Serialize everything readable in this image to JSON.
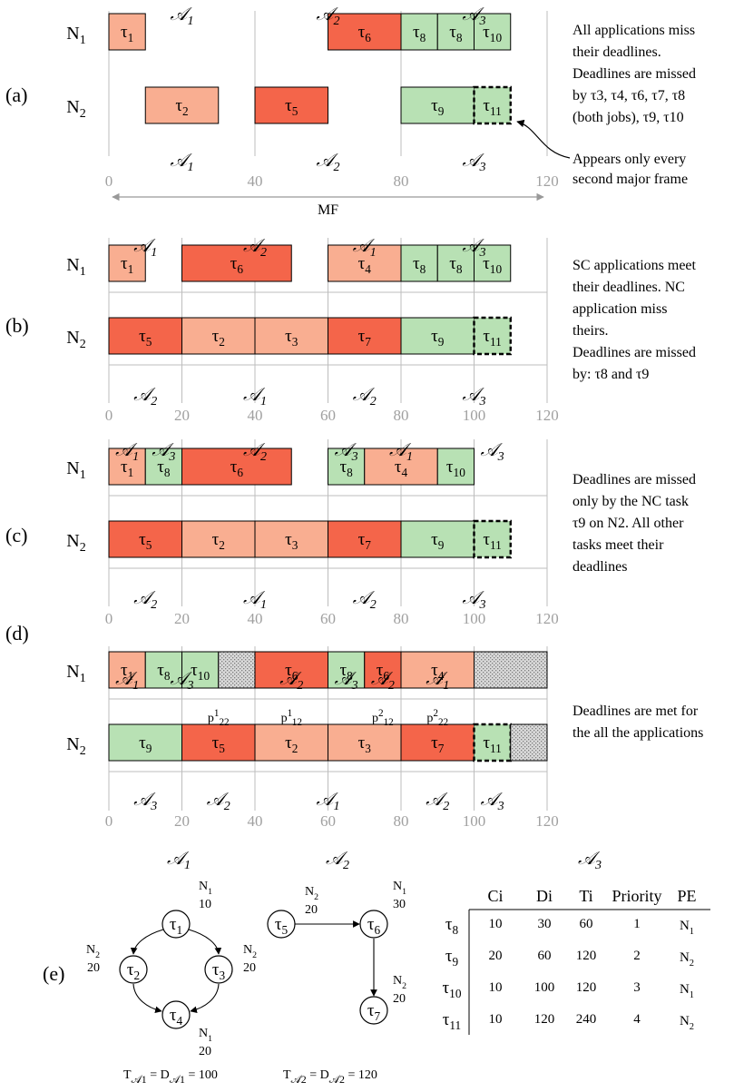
{
  "colors": {
    "hard": "#f4654a",
    "light": "#f9ae91",
    "green": "#b8e1b4",
    "idle": "#c8c8c8",
    "axis": "#a0a0a0"
  },
  "nodes": [
    "N1",
    "N2"
  ],
  "rows": [
    {
      "id": "a",
      "panel": "(a)",
      "axis_ticks": [
        "0",
        "40",
        "80",
        "120"
      ],
      "axis_color": "grey",
      "mf_label": "MF",
      "n1_tasks": [
        {
          "label": "τ1",
          "color": "light",
          "start": 0,
          "end": 10
        },
        {
          "label": "τ6",
          "color": "hard",
          "start": 60,
          "end": 80
        },
        {
          "label": "τ8",
          "color": "green",
          "start": 80,
          "end": 90
        },
        {
          "label": "τ8",
          "color": "green",
          "start": 90,
          "end": 100
        },
        {
          "label": "τ10",
          "color": "green",
          "start": 100,
          "end": 110
        }
      ],
      "n2_tasks": [
        {
          "label": "τ2",
          "color": "light",
          "start": 10,
          "end": 30
        },
        {
          "label": "τ5",
          "color": "hard",
          "start": 40,
          "end": 60
        },
        {
          "label": "τ9",
          "color": "green",
          "start": 80,
          "end": 100
        },
        {
          "label": "τ11",
          "color": "green",
          "start": 100,
          "end": 110,
          "dashed": true
        }
      ],
      "n1_apps": [
        {
          "label": "𝒜1",
          "at": 20
        },
        {
          "label": "𝒜2",
          "at": 60
        },
        {
          "label": "𝒜3",
          "at": 100
        }
      ],
      "n2_apps": [
        {
          "label": "𝒜1",
          "at": 20
        },
        {
          "label": "𝒜2",
          "at": 60
        },
        {
          "label": "𝒜3",
          "at": 100
        }
      ],
      "side_text": [
        "All applications miss",
        "their deadlines.",
        "Deadlines are missed",
        "by τ3, τ4, τ6, τ7, τ8",
        "(both jobs), τ9, τ10"
      ],
      "callout": [
        "Appears only every",
        "second major frame"
      ]
    },
    {
      "id": "b",
      "panel": "(b)",
      "axis_ticks": [
        "0",
        "20",
        "40",
        "60",
        "80",
        "100",
        "120"
      ],
      "n1_tasks": [
        {
          "label": "τ1",
          "color": "light",
          "start": 0,
          "end": 10
        },
        {
          "label": "τ6",
          "color": "hard",
          "start": 20,
          "end": 50
        },
        {
          "label": "τ4",
          "color": "light",
          "start": 60,
          "end": 80
        },
        {
          "label": "τ8",
          "color": "green",
          "start": 80,
          "end": 90
        },
        {
          "label": "τ8",
          "color": "green",
          "start": 90,
          "end": 100
        },
        {
          "label": "τ10",
          "color": "green",
          "start": 100,
          "end": 110
        }
      ],
      "n2_tasks": [
        {
          "label": "τ5",
          "color": "hard",
          "start": 0,
          "end": 20
        },
        {
          "label": "τ2",
          "color": "light",
          "start": 20,
          "end": 40
        },
        {
          "label": "τ3",
          "color": "light",
          "start": 40,
          "end": 60
        },
        {
          "label": "τ7",
          "color": "hard",
          "start": 60,
          "end": 80
        },
        {
          "label": "τ9",
          "color": "green",
          "start": 80,
          "end": 100
        },
        {
          "label": "τ11",
          "color": "green",
          "start": 100,
          "end": 110,
          "dashed": true
        }
      ],
      "n1_apps": [
        {
          "label": "𝒜1",
          "at": 10
        },
        {
          "label": "𝒜2",
          "at": 40
        },
        {
          "label": "𝒜1",
          "at": 70
        },
        {
          "label": "𝒜3",
          "at": 100
        }
      ],
      "n2_apps": [
        {
          "label": "𝒜2",
          "at": 10
        },
        {
          "label": "𝒜1",
          "at": 40
        },
        {
          "label": "𝒜2",
          "at": 70
        },
        {
          "label": "𝒜3",
          "at": 100
        }
      ],
      "side_text": [
        "SC applications meet",
        "their deadlines. NC",
        "application miss",
        "theirs.",
        "Deadlines are missed",
        "by: τ8 and τ9"
      ]
    },
    {
      "id": "c",
      "panel": "(c)",
      "axis_ticks": [
        "0",
        "20",
        "40",
        "60",
        "80",
        "100",
        "120"
      ],
      "n1_tasks": [
        {
          "label": "τ1",
          "color": "light",
          "start": 0,
          "end": 10
        },
        {
          "label": "τ8",
          "color": "green",
          "start": 10,
          "end": 20
        },
        {
          "label": "τ6",
          "color": "hard",
          "start": 20,
          "end": 50
        },
        {
          "label": "τ8",
          "color": "green",
          "start": 60,
          "end": 70
        },
        {
          "label": "τ4",
          "color": "light",
          "start": 70,
          "end": 90
        },
        {
          "label": "τ10",
          "color": "green",
          "start": 90,
          "end": 100
        }
      ],
      "n2_tasks": [
        {
          "label": "τ5",
          "color": "hard",
          "start": 0,
          "end": 20
        },
        {
          "label": "τ2",
          "color": "light",
          "start": 20,
          "end": 40
        },
        {
          "label": "τ3",
          "color": "light",
          "start": 40,
          "end": 60
        },
        {
          "label": "τ7",
          "color": "hard",
          "start": 60,
          "end": 80
        },
        {
          "label": "τ9",
          "color": "green",
          "start": 80,
          "end": 100
        },
        {
          "label": "τ11",
          "color": "green",
          "start": 100,
          "end": 110,
          "dashed": true
        }
      ],
      "n1_apps": [
        {
          "label": "𝒜1",
          "at": 5
        },
        {
          "label": "𝒜3",
          "at": 15
        },
        {
          "label": "𝒜2",
          "at": 40
        },
        {
          "label": "𝒜3",
          "at": 65
        },
        {
          "label": "𝒜1",
          "at": 80
        },
        {
          "label": "𝒜3",
          "at": 105
        }
      ],
      "n2_apps": [
        {
          "label": "𝒜2",
          "at": 10
        },
        {
          "label": "𝒜1",
          "at": 40
        },
        {
          "label": "𝒜2",
          "at": 70
        },
        {
          "label": "𝒜3",
          "at": 100
        }
      ],
      "side_text": [
        "Deadlines are missed",
        "only by the NC task",
        "τ9 on N2. All other",
        "tasks meet their",
        "deadlines"
      ]
    },
    {
      "id": "d",
      "panel": "(d)",
      "axis_ticks": [
        "0",
        "20",
        "40",
        "60",
        "80",
        "100",
        "120"
      ],
      "n1_tasks": [
        {
          "label": "τ1",
          "color": "light",
          "start": 0,
          "end": 10
        },
        {
          "label": "τ8",
          "color": "green",
          "start": 10,
          "end": 20
        },
        {
          "label": "τ10",
          "color": "green",
          "start": 20,
          "end": 30
        },
        {
          "label": "",
          "color": "idle",
          "start": 30,
          "end": 40
        },
        {
          "label": "τ6",
          "color": "hard",
          "start": 40,
          "end": 60
        },
        {
          "label": "τ8",
          "color": "green",
          "start": 60,
          "end": 70
        },
        {
          "label": "τ6",
          "color": "hard",
          "start": 70,
          "end": 80
        },
        {
          "label": "τ4",
          "color": "light",
          "start": 80,
          "end": 100
        },
        {
          "label": "",
          "color": "idle",
          "start": 100,
          "end": 120
        }
      ],
      "n2_tasks": [
        {
          "label": "τ9",
          "color": "green",
          "start": 0,
          "end": 20
        },
        {
          "label": "τ5",
          "color": "hard",
          "start": 20,
          "end": 40
        },
        {
          "label": "τ2",
          "color": "light",
          "start": 40,
          "end": 60
        },
        {
          "label": "τ3",
          "color": "light",
          "start": 60,
          "end": 80
        },
        {
          "label": "τ7",
          "color": "hard",
          "start": 80,
          "end": 100
        },
        {
          "label": "τ11",
          "color": "green",
          "start": 100,
          "end": 110,
          "dashed": true
        },
        {
          "label": "",
          "color": "idle",
          "start": 110,
          "end": 120
        }
      ],
      "n1_apps": [
        {
          "label": "𝒜1",
          "at": 5
        },
        {
          "label": "𝒜3",
          "at": 20
        },
        {
          "label": "𝒜2",
          "at": 50
        },
        {
          "label": "𝒜3",
          "at": 65
        },
        {
          "label": "𝒜2",
          "at": 75
        },
        {
          "label": "𝒜1",
          "at": 90
        }
      ],
      "n2_apps": [
        {
          "label": "𝒜3",
          "at": 10
        },
        {
          "label": "𝒜2",
          "at": 30
        },
        {
          "label": "𝒜1",
          "at": 60
        },
        {
          "label": "𝒜2",
          "at": 90
        },
        {
          "label": "𝒜3",
          "at": 105
        }
      ],
      "partitions": [
        {
          "label": "p1",
          "sub": "22",
          "at": 30
        },
        {
          "label": "p1",
          "sub": "12",
          "at": 50
        },
        {
          "label": "p2",
          "sub": "12",
          "at": 75
        },
        {
          "label": "p2",
          "sub": "22",
          "at": 90
        }
      ],
      "side_text": [
        "Deadlines are met for",
        "the all the applications"
      ]
    }
  ],
  "panel_e": {
    "panel": "(e)",
    "a1": {
      "title": "𝒜1",
      "nodes": [
        {
          "label": "τ1",
          "node": "N1",
          "wcet": "10"
        },
        {
          "label": "τ2",
          "node": "N2",
          "wcet": "20"
        },
        {
          "label": "τ3",
          "node": "N2",
          "wcet": "20"
        },
        {
          "label": "τ4",
          "node": "N1",
          "wcet": "20"
        }
      ],
      "formula": "T𝒜1 = D𝒜1 = 100"
    },
    "a2": {
      "title": "𝒜2",
      "nodes": [
        {
          "label": "τ5",
          "node": "N2",
          "wcet": "20"
        },
        {
          "label": "τ6",
          "node": "N1",
          "wcet": "30"
        },
        {
          "label": "τ7",
          "node": "N2",
          "wcet": "20"
        }
      ],
      "formula": "T𝒜2 = D𝒜2 = 120"
    },
    "a3": {
      "title": "𝒜3",
      "headers": [
        "Ci",
        "Di",
        "Ti",
        "Priority",
        "PE"
      ],
      "rows": [
        {
          "task": "τ8",
          "C": "10",
          "D": "30",
          "T": "60",
          "prio": "1",
          "pe": "N1"
        },
        {
          "task": "τ9",
          "C": "20",
          "D": "60",
          "T": "120",
          "prio": "2",
          "pe": "N2"
        },
        {
          "task": "τ10",
          "C": "10",
          "D": "100",
          "T": "120",
          "prio": "3",
          "pe": "N1"
        },
        {
          "task": "τ11",
          "C": "10",
          "D": "120",
          "T": "240",
          "prio": "4",
          "pe": "N2"
        }
      ]
    }
  }
}
